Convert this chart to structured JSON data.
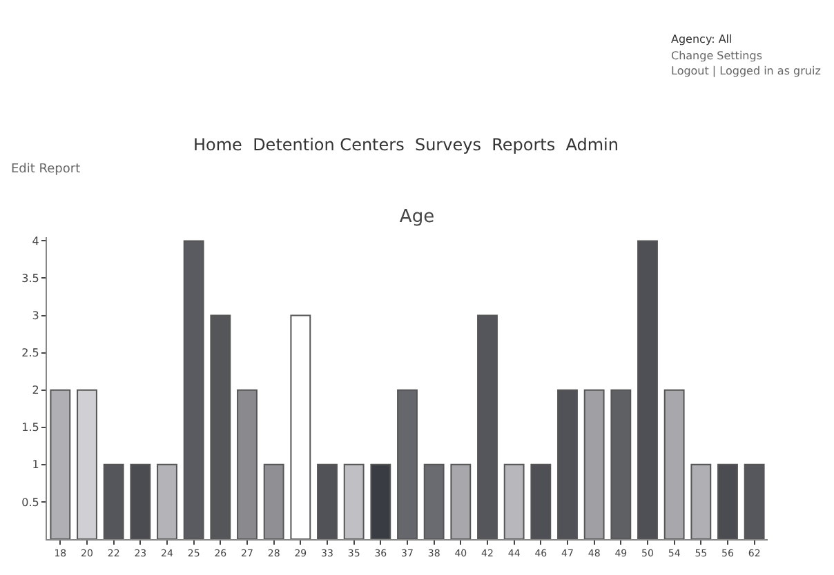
{
  "chart_data": {
    "type": "bar",
    "title": "Age",
    "categories": [
      "18",
      "20",
      "22",
      "23",
      "24",
      "25",
      "26",
      "27",
      "28",
      "29",
      "33",
      "35",
      "36",
      "37",
      "38",
      "40",
      "42",
      "44",
      "46",
      "47",
      "48",
      "49",
      "50",
      "54",
      "55",
      "56",
      "62"
    ],
    "values": [
      2,
      2,
      1,
      1,
      1,
      4,
      3,
      2,
      1,
      3,
      1,
      1,
      1,
      2,
      1,
      1,
      3,
      1,
      1,
      2,
      2,
      2,
      4,
      2,
      1,
      1,
      1
    ],
    "colors": [
      "#b0b0b4",
      "#d0d0d4",
      "#55565c",
      "#4a4c52",
      "#b4b4b8",
      "#5a5b60",
      "#55565a",
      "#8a8a8e",
      "#909094",
      "#ffffff",
      "#505258",
      "#c0c0c4",
      "#3a3c44",
      "#66676c",
      "#6a6b70",
      "#a8a8ac",
      "#55565c",
      "#b8b8bc",
      "#4e5056",
      "#505258",
      "#a0a0a4",
      "#5e6064",
      "#4e5056",
      "#a8a8ac",
      "#b0b0b4",
      "#4a4c52",
      "#55575c"
    ],
    "ylim": [
      0,
      4.05
    ],
    "yticks": [
      0.5,
      1,
      1.5,
      2,
      2.5,
      3,
      3.5,
      4
    ],
    "annotations": [
      "Agency: All",
      "Change Settings",
      "Logout | Logged in as gruiz",
      "Home  Detention Centers  Surveys  Reports  Admin",
      "Edit Report"
    ]
  }
}
